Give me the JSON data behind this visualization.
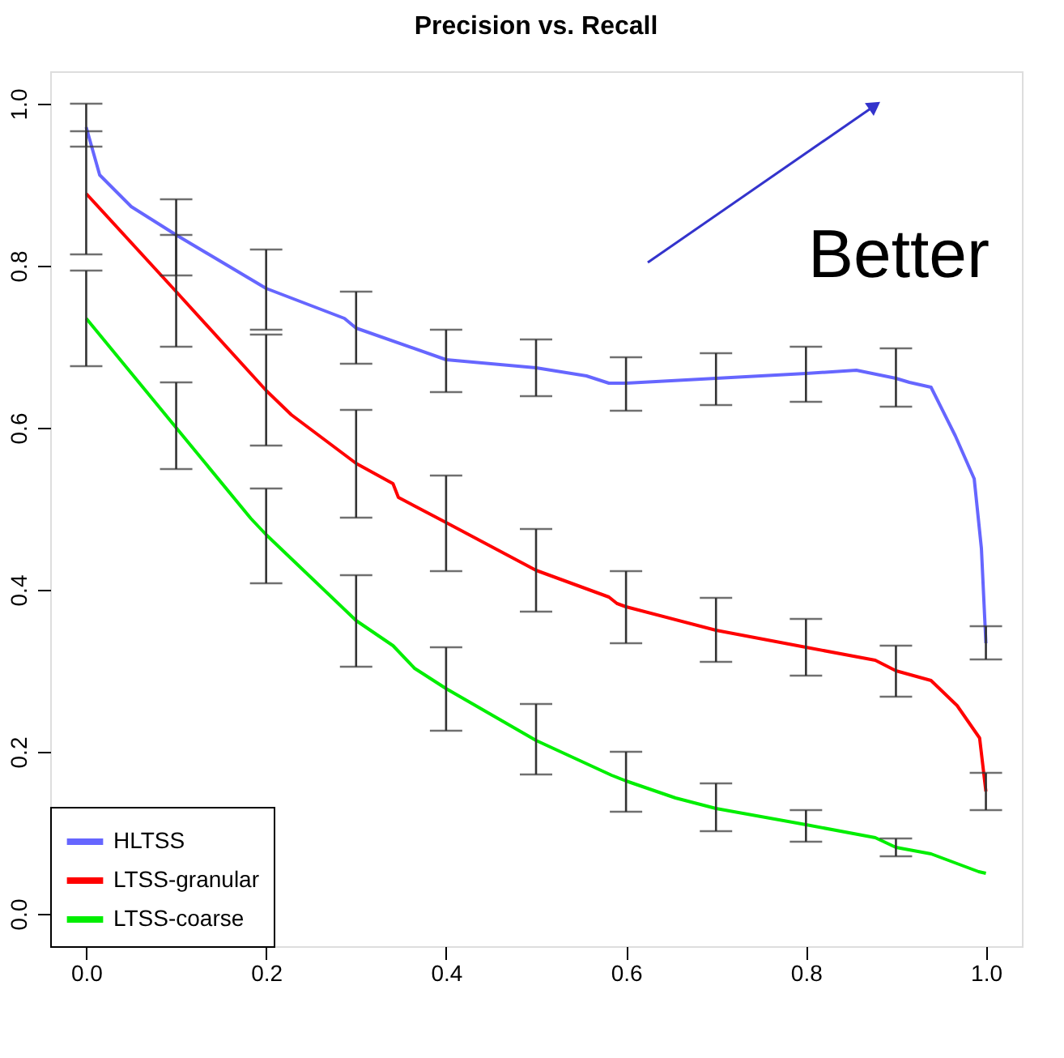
{
  "chart_data": {
    "type": "line",
    "title": "Precision vs. Recall",
    "xlim": [
      -0.04,
      1.04
    ],
    "ylim": [
      -0.04,
      1.04
    ],
    "xticks": [
      {
        "value": 0,
        "label": "0.0"
      },
      0.2,
      0.4,
      0.6,
      0.8,
      {
        "value": 1,
        "label": "1.0"
      }
    ],
    "yticks": [
      {
        "value": 0,
        "label": "0.0"
      },
      0.2,
      0.4,
      0.6,
      0.8,
      {
        "value": 1,
        "label": "1.0"
      }
    ],
    "grid": false,
    "legend": "bottom left",
    "marker": "none",
    "line_style": "solid",
    "annotations": [
      "Better"
    ],
    "series": [
      {
        "name": "HLTSS",
        "color": "#6666ff",
        "x": [
          0,
          0.015,
          0.05,
          0.1,
          0.2,
          0.287,
          0.3,
          0.4,
          0.5,
          0.556,
          0.581,
          0.6,
          0.7,
          0.8,
          0.856,
          0.9,
          0.915,
          0.939,
          0.966,
          0.987,
          0.995,
          1.0
        ],
        "values": [
          0.971,
          0.912,
          0.873,
          0.838,
          0.772,
          0.735,
          0.723,
          0.684,
          0.674,
          0.664,
          0.655,
          0.655,
          0.661,
          0.667,
          0.671,
          0.661,
          0.656,
          0.65,
          0.59,
          0.537,
          0.451,
          0.334
        ],
        "errors": [
          [
            0.947,
            1.0
          ],
          null,
          null,
          [
            0.788,
            0.882
          ],
          [
            0.721,
            0.82
          ],
          null,
          [
            0.679,
            0.768
          ],
          [
            0.644,
            0.721
          ],
          [
            0.639,
            0.709
          ],
          null,
          null,
          [
            0.621,
            0.687
          ],
          [
            0.628,
            0.692
          ],
          [
            0.632,
            0.7
          ],
          null,
          [
            0.626,
            0.698
          ],
          null,
          null,
          null,
          null,
          null,
          [
            0.314,
            0.355
          ]
        ]
      },
      {
        "name": "LTSS-granular",
        "color": "#ff0000",
        "x": [
          0,
          0.1,
          0.2,
          0.228,
          0.3,
          0.341,
          0.347,
          0.4,
          0.5,
          0.581,
          0.59,
          0.6,
          0.7,
          0.8,
          0.877,
          0.9,
          0.939,
          0.968,
          0.993,
          1.0
        ],
        "values": [
          0.889,
          0.768,
          0.646,
          0.616,
          0.556,
          0.531,
          0.514,
          0.483,
          0.424,
          0.391,
          0.383,
          0.379,
          0.35,
          0.329,
          0.313,
          0.3,
          0.288,
          0.257,
          0.217,
          0.151
        ],
        "errors": [
          [
            0.814,
            0.966
          ],
          [
            0.7,
            0.838
          ],
          [
            0.578,
            0.715
          ],
          null,
          [
            0.489,
            0.622
          ],
          null,
          null,
          [
            0.423,
            0.541
          ],
          [
            0.373,
            0.475
          ],
          null,
          null,
          [
            0.334,
            0.423
          ],
          [
            0.311,
            0.39
          ],
          [
            0.294,
            0.364
          ],
          null,
          [
            0.268,
            0.331
          ],
          null,
          null,
          null,
          [
            0.128,
            0.174
          ]
        ]
      },
      {
        "name": "LTSS-coarse",
        "color": "#00ee00",
        "x": [
          0,
          0.1,
          0.183,
          0.2,
          0.3,
          0.341,
          0.365,
          0.4,
          0.5,
          0.584,
          0.6,
          0.655,
          0.7,
          0.8,
          0.877,
          0.9,
          0.939,
          0.992,
          1.0
        ],
        "values": [
          0.735,
          0.6,
          0.488,
          0.468,
          0.362,
          0.331,
          0.303,
          0.278,
          0.214,
          0.171,
          0.164,
          0.143,
          0.13,
          0.11,
          0.094,
          0.082,
          0.074,
          0.052,
          0.05
        ],
        "errors": [
          [
            0.676,
            0.794
          ],
          [
            0.549,
            0.656
          ],
          null,
          [
            0.408,
            0.525
          ],
          [
            0.305,
            0.418
          ],
          null,
          null,
          [
            0.226,
            0.329
          ],
          [
            0.172,
            0.259
          ],
          null,
          [
            0.126,
            0.2
          ],
          null,
          [
            0.102,
            0.161
          ],
          [
            0.089,
            0.128
          ],
          null,
          [
            0.071,
            0.093
          ],
          null,
          null,
          null
        ]
      }
    ]
  }
}
